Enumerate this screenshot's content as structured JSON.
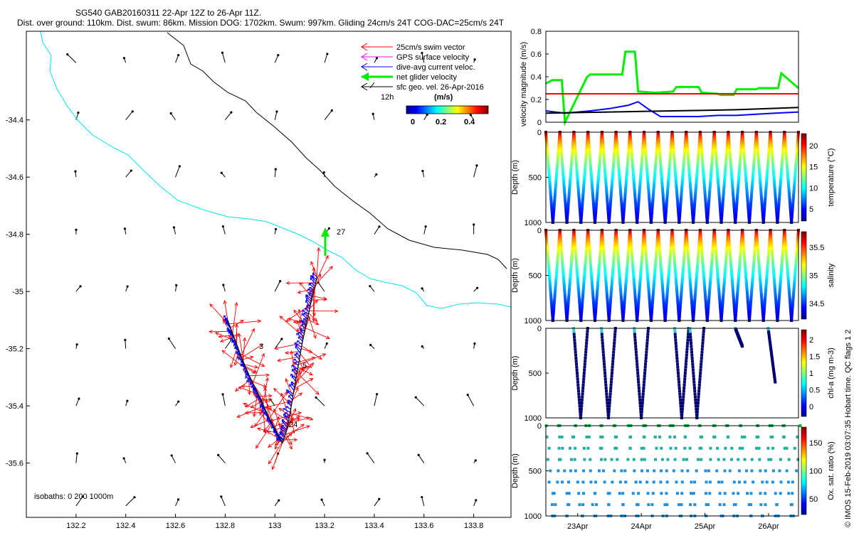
{
  "header": {
    "title_line1": "SG540 GAB20160311 22-Apr 12Z to 26-Apr 11Z.",
    "title_line2": "Dist. over ground: 110km. Dist. swum: 86km. Mission DOG: 1702km. Swum: 997km. Gliding 24cm/s 24T COG-DAC=25cm/s 24T"
  },
  "credit": "© IMOS 15-Feb-2019 03:07:35 Hobart time. QC flags 1  2",
  "colors": {
    "swim": "#ff0000",
    "gps": "#ff00ff",
    "dac": "#0000ff",
    "net": "#00ee00",
    "geo": "#000000",
    "coast": "#00e5ee",
    "isobath": "#000000"
  },
  "chart_data": [
    {
      "type": "scatter",
      "panel": "map",
      "xticks": [
        "132.2",
        "132.4",
        "132.6",
        "132.8",
        "133",
        "133.2",
        "133.4",
        "133.6",
        "133.8"
      ],
      "yticks": [
        "-34.4",
        "-34.6",
        "-34.8",
        "-35",
        "-35.2",
        "-35.4",
        "-35.6"
      ],
      "xlim": [
        132.0,
        133.95
      ],
      "ylim": [
        -35.79,
        -34.09
      ],
      "legend": {
        "items": [
          {
            "label": "25cm/s swim vector",
            "color": "#ff0000"
          },
          {
            "label": "GPS surface velocity",
            "color": "#ff00ff"
          },
          {
            "label": "dive-avg current veloc.",
            "color": "#0000ff"
          },
          {
            "label": "net glider velocity",
            "color": "#00ee00"
          },
          {
            "label": "sfc geo. vel. 26-Apr-2016",
            "color": "#000000"
          }
        ],
        "scale_label": "12h",
        "unit": "(m/s)",
        "colorbar_ticks": [
          "0",
          "0.2",
          "0.4"
        ]
      },
      "isobath_text": "isobaths: 0   200  1000m",
      "track_labels": [
        "27",
        "3",
        "5",
        "24"
      ],
      "track": {
        "lon": [
          132.81,
          132.84,
          132.87,
          132.9,
          132.94,
          132.97,
          133.0,
          133.03,
          133.05,
          133.07,
          133.09,
          133.11,
          133.13,
          133.15,
          133.17
        ],
        "lat": [
          -35.1,
          -35.17,
          -35.24,
          -35.3,
          -35.37,
          -35.43,
          -35.48,
          -35.53,
          -35.48,
          -35.38,
          -35.28,
          -35.18,
          -35.1,
          -35.02,
          -34.95
        ]
      },
      "geo_vectors": {
        "lon": [
          132.2,
          132.4,
          132.6,
          132.8,
          133.0,
          133.2,
          133.4,
          133.6,
          133.8
        ],
        "lat": [
          -34.2,
          -34.4,
          -34.6,
          -34.8,
          -35.0,
          -35.2,
          -35.4,
          -35.6,
          -35.75
        ]
      }
    },
    {
      "type": "line",
      "panel": "velocity",
      "ylabel": "velocity magnitude (m/s)",
      "ylim": [
        0,
        0.8
      ],
      "yticks": [
        "0",
        "0.2",
        "0.4",
        "0.6",
        "0.8"
      ],
      "x_days": [
        22.5,
        26.47
      ],
      "series": [
        {
          "color": "#00ee00",
          "x": [
            22.5,
            22.6,
            22.75,
            22.8,
            23.15,
            23.2,
            23.7,
            23.75,
            23.9,
            23.95,
            24.2,
            24.25,
            24.5,
            24.55,
            24.9,
            24.95,
            25.2,
            25.25,
            25.45,
            25.5,
            25.8,
            25.85,
            26.15,
            26.2,
            26.47
          ],
          "y": [
            0.34,
            0.37,
            0.37,
            0.0,
            0.4,
            0.42,
            0.42,
            0.62,
            0.62,
            0.27,
            0.26,
            0.26,
            0.27,
            0.31,
            0.31,
            0.26,
            0.25,
            0.24,
            0.24,
            0.29,
            0.29,
            0.3,
            0.3,
            0.43,
            0.3
          ]
        },
        {
          "color": "#ff0000",
          "x": [
            22.5,
            26.47
          ],
          "y": [
            0.25,
            0.25
          ]
        },
        {
          "color": "#0000ff",
          "x": [
            22.5,
            22.8,
            23.2,
            23.5,
            23.8,
            23.95,
            24.1,
            24.3,
            24.6,
            24.9,
            25.2,
            25.5,
            25.8,
            26.1,
            26.47
          ],
          "y": [
            0.1,
            0.08,
            0.1,
            0.12,
            0.15,
            0.18,
            0.12,
            0.05,
            0.05,
            0.05,
            0.06,
            0.06,
            0.07,
            0.08,
            0.09
          ]
        },
        {
          "color": "#000000",
          "x": [
            22.5,
            23.0,
            23.5,
            24.0,
            24.5,
            25.0,
            25.5,
            26.0,
            26.47
          ],
          "y": [
            0.08,
            0.085,
            0.09,
            0.095,
            0.1,
            0.105,
            0.11,
            0.12,
            0.13
          ]
        }
      ]
    },
    {
      "type": "scatter",
      "panel": "temperature",
      "ylabel": "Depth (m)",
      "ylim": [
        1000,
        0
      ],
      "yticks": [
        "0",
        "500",
        "1000"
      ],
      "colorbar_label": "temperature (°C)",
      "colorbar_ticks": [
        "5",
        "10",
        "15",
        "20"
      ]
    },
    {
      "type": "scatter",
      "panel": "salinity",
      "ylabel": "Depth (m)",
      "ylim": [
        1000,
        0
      ],
      "yticks": [
        "0",
        "500",
        "1000"
      ],
      "colorbar_label": "salinity",
      "colorbar_ticks": [
        "34.5",
        "35",
        "35.5"
      ]
    },
    {
      "type": "scatter",
      "panel": "chla",
      "ylabel": "Depth (m)",
      "ylim": [
        1000,
        0
      ],
      "yticks": [
        "0",
        "500",
        "1000"
      ],
      "colorbar_label": "chl-a (mg m-3)",
      "colorbar_ticks": [
        "0",
        "0.5",
        "1",
        "1.5",
        "2"
      ]
    },
    {
      "type": "scatter",
      "panel": "oxygen",
      "ylabel": "Depth (m)",
      "ylim": [
        1000,
        0
      ],
      "yticks": [
        "0",
        "500",
        "1000"
      ],
      "colorbar_label": "Ox. sat. ratio (%)",
      "colorbar_ticks": [
        "50",
        "100",
        "150"
      ],
      "xticks": [
        "23Apr",
        "24Apr",
        "25Apr",
        "26Apr"
      ]
    }
  ]
}
